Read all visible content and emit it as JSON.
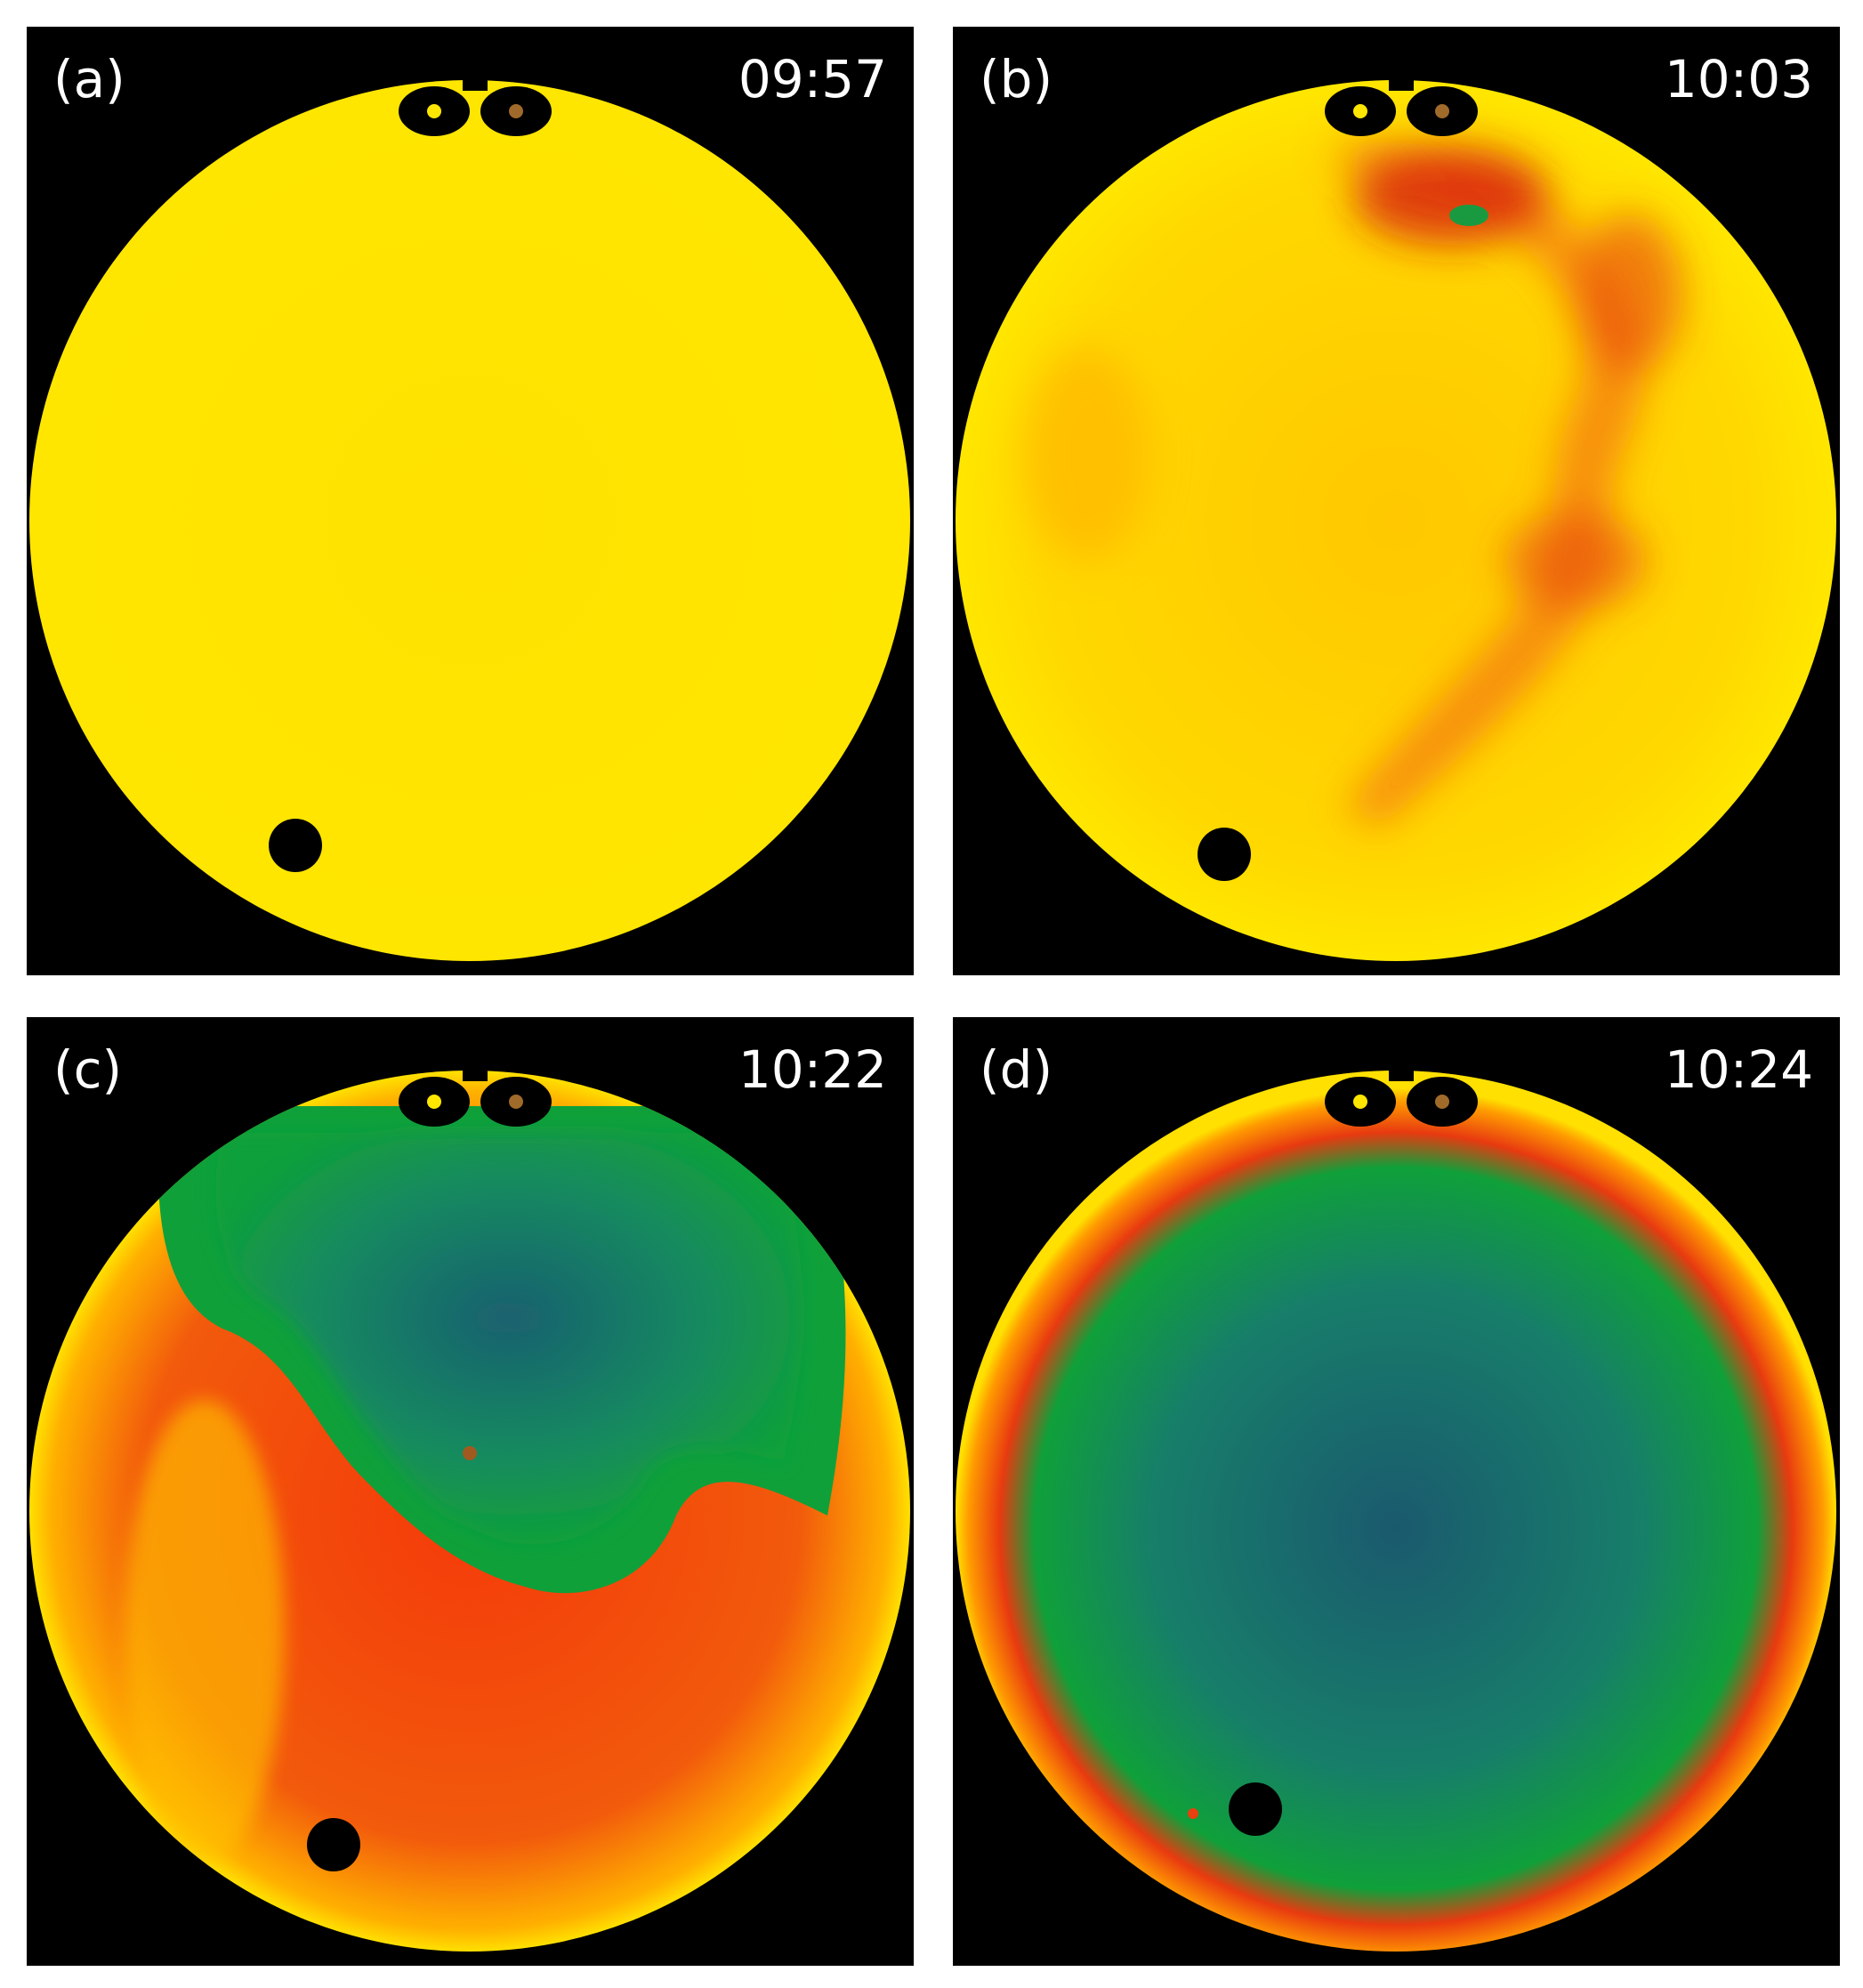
{
  "panels": [
    {
      "label": "(a)",
      "time": "09:57"
    },
    {
      "label": "(b)",
      "time": "10:03"
    },
    {
      "label": "(c)",
      "time": "10:22"
    },
    {
      "label": "(d)",
      "time": "10:24"
    }
  ],
  "colors": {
    "background": "#000000",
    "clear_sky_yellow": "#ffe600",
    "orange": "#ff9a00",
    "red": "#e51a0a",
    "green": "#0aa040",
    "teal": "#1a6e78"
  }
}
